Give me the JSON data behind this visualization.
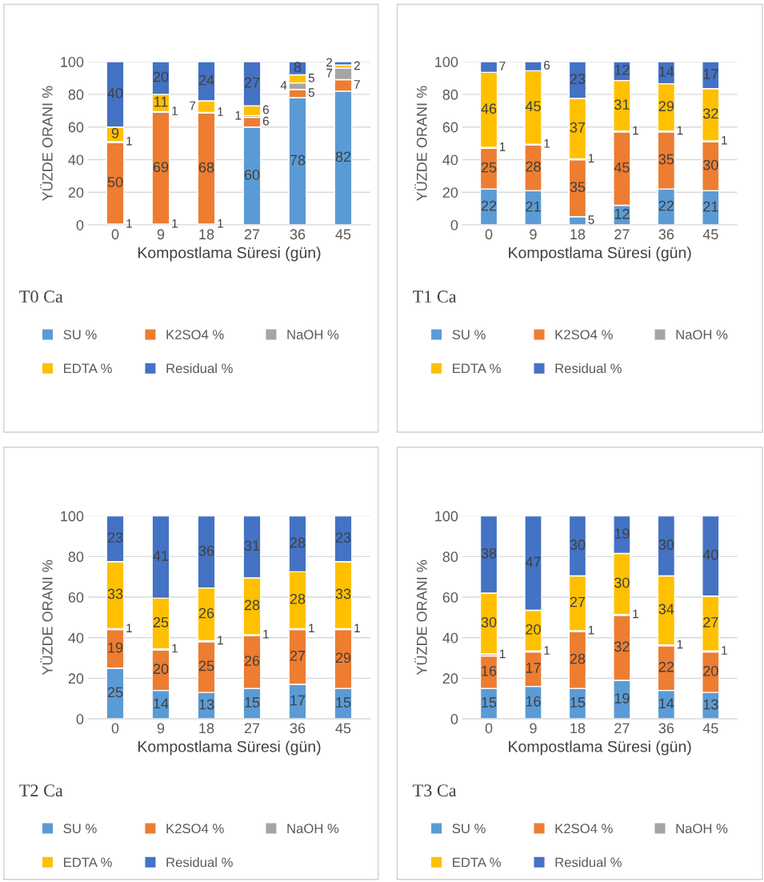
{
  "chart_data": [
    {
      "type": "bar",
      "stacked": true,
      "title": "T0 Ca",
      "xlabel": "Kompostlama Süresi (gün)",
      "ylabel": "YÜZDE ORANI %",
      "categories": [
        "0",
        "9",
        "18",
        "27",
        "36",
        "45"
      ],
      "ylim": [
        0,
        100
      ],
      "yticks": [
        0,
        20,
        40,
        60,
        80,
        100
      ],
      "grid": "y",
      "legend": "bottom",
      "series": [
        {
          "name": "SU %",
          "color": "#5b9bd5",
          "values": [
            0.5,
            0.5,
            0.5,
            60,
            78,
            82
          ],
          "value_labels": [
            "1",
            "1",
            "1",
            "60",
            "78",
            "82"
          ]
        },
        {
          "name": "K2SO4 %",
          "color": "#ed7d31",
          "values": [
            50,
            68.5,
            68,
            6,
            5,
            7
          ],
          "value_labels": [
            "50",
            "69",
            "68",
            "6",
            "5",
            "7"
          ]
        },
        {
          "name": "NaOH %",
          "color": "#a5a5a5",
          "values": [
            0.5,
            0.5,
            0.5,
            1,
            4,
            7
          ],
          "value_labels": [
            "1",
            "1",
            "1",
            "1",
            "4",
            "7"
          ]
        },
        {
          "name": "EDTA %",
          "color": "#ffc000",
          "values": [
            9,
            10.5,
            7,
            6,
            5,
            2
          ],
          "value_labels": [
            "9",
            "11",
            "7",
            "6",
            "5",
            "2"
          ]
        },
        {
          "name": "Residual %",
          "color": "#4472c4",
          "values": [
            40,
            20,
            24,
            27,
            8,
            2
          ],
          "value_labels": [
            "40",
            "20",
            "24",
            "27",
            "8",
            "2"
          ]
        }
      ]
    },
    {
      "type": "bar",
      "stacked": true,
      "title": "T1 Ca",
      "xlabel": "Kompostlama Süresi (gün)",
      "ylabel": "YÜZDE ORANI %",
      "categories": [
        "0",
        "9",
        "18",
        "27",
        "36",
        "45"
      ],
      "ylim": [
        0,
        100
      ],
      "yticks": [
        0,
        20,
        40,
        60,
        80,
        100
      ],
      "grid": "y",
      "legend": "bottom",
      "series": [
        {
          "name": "SU %",
          "color": "#5b9bd5",
          "values": [
            22,
            21,
            5,
            12,
            22,
            21
          ],
          "value_labels": [
            "22",
            "21",
            "5",
            "12",
            "22",
            "21"
          ]
        },
        {
          "name": "K2SO4 %",
          "color": "#ed7d31",
          "values": [
            25,
            28,
            35,
            45,
            35,
            30
          ],
          "value_labels": [
            "25",
            "28",
            "35",
            "45",
            "35",
            "30"
          ]
        },
        {
          "name": "NaOH %",
          "color": "#a5a5a5",
          "values": [
            0.5,
            0.5,
            0.5,
            0.5,
            0.5,
            0.5
          ],
          "value_labels": [
            "1",
            "1",
            "1",
            "1",
            "1",
            "1"
          ]
        },
        {
          "name": "EDTA %",
          "color": "#ffc000",
          "values": [
            46,
            45,
            37,
            31,
            29,
            32
          ],
          "value_labels": [
            "46",
            "45",
            "37",
            "31",
            "29",
            "32"
          ]
        },
        {
          "name": "Residual %",
          "color": "#4472c4",
          "values": [
            6.5,
            5.5,
            22.5,
            11.5,
            13.5,
            16.5
          ],
          "value_labels": [
            "7",
            "6",
            "23",
            "12",
            "14",
            "17"
          ]
        }
      ]
    },
    {
      "type": "bar",
      "stacked": true,
      "title": "T2 Ca",
      "xlabel": "Kompostlama Süresi (gün)",
      "ylabel": "YÜZDE ORANI %",
      "categories": [
        "0",
        "9",
        "18",
        "27",
        "36",
        "45"
      ],
      "ylim": [
        0,
        100
      ],
      "yticks": [
        0,
        20,
        40,
        60,
        80,
        100
      ],
      "grid": "y",
      "legend": "bottom",
      "series": [
        {
          "name": "SU %",
          "color": "#5b9bd5",
          "values": [
            25,
            14,
            13,
            15,
            17,
            15
          ],
          "value_labels": [
            "25",
            "14",
            "13",
            "15",
            "17",
            "15"
          ]
        },
        {
          "name": "K2SO4 %",
          "color": "#ed7d31",
          "values": [
            19,
            20,
            25,
            26,
            27,
            29
          ],
          "value_labels": [
            "19",
            "20",
            "25",
            "26",
            "27",
            "29"
          ]
        },
        {
          "name": "NaOH %",
          "color": "#a5a5a5",
          "values": [
            0.5,
            0.5,
            0.5,
            0.5,
            0.5,
            0.5
          ],
          "value_labels": [
            "1",
            "1",
            "1",
            "1",
            "1",
            "1"
          ]
        },
        {
          "name": "EDTA %",
          "color": "#ffc000",
          "values": [
            33,
            25,
            26,
            28,
            28,
            33
          ],
          "value_labels": [
            "33",
            "25",
            "26",
            "28",
            "28",
            "33"
          ]
        },
        {
          "name": "Residual %",
          "color": "#4472c4",
          "values": [
            22.5,
            40.5,
            35.5,
            30.5,
            27.5,
            22.5
          ],
          "value_labels": [
            "23",
            "41",
            "36",
            "31",
            "28",
            "23"
          ]
        }
      ]
    },
    {
      "type": "bar",
      "stacked": true,
      "title": "T3 Ca",
      "xlabel": "Kompostlama Süresi (gün)",
      "ylabel": "YÜZDE ORANI %",
      "categories": [
        "0",
        "9",
        "18",
        "27",
        "36",
        "45"
      ],
      "ylim": [
        0,
        100
      ],
      "yticks": [
        0,
        20,
        40,
        60,
        80,
        100
      ],
      "grid": "y",
      "legend": "bottom",
      "series": [
        {
          "name": "SU %",
          "color": "#5b9bd5",
          "values": [
            15,
            16,
            15,
            19,
            14,
            13
          ],
          "value_labels": [
            "15",
            "16",
            "15",
            "19",
            "14",
            "13"
          ]
        },
        {
          "name": "K2SO4 %",
          "color": "#ed7d31",
          "values": [
            16,
            17,
            28,
            32,
            22,
            20
          ],
          "value_labels": [
            "16",
            "17",
            "28",
            "32",
            "22",
            "20"
          ]
        },
        {
          "name": "NaOH %",
          "color": "#a5a5a5",
          "values": [
            1,
            0.5,
            0.5,
            0.5,
            0.5,
            0.5
          ],
          "value_labels": [
            "1",
            "1",
            "1",
            "1",
            "1",
            "1"
          ]
        },
        {
          "name": "EDTA %",
          "color": "#ffc000",
          "values": [
            30,
            20,
            27,
            30,
            34,
            27
          ],
          "value_labels": [
            "30",
            "20",
            "27",
            "30",
            "34",
            "27"
          ]
        },
        {
          "name": "Residual %",
          "color": "#4472c4",
          "values": [
            38,
            46.5,
            29.5,
            18.5,
            29.5,
            39.5
          ],
          "value_labels": [
            "38",
            "47",
            "30",
            "19",
            "30",
            "40"
          ]
        }
      ]
    }
  ]
}
